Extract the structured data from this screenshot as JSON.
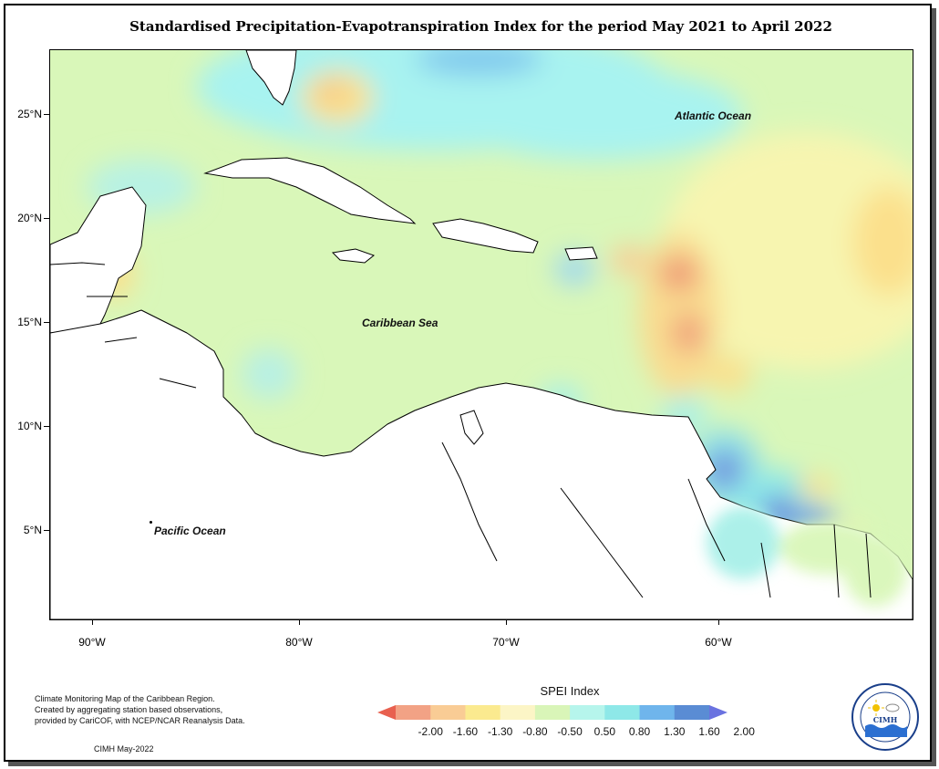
{
  "title": "Standardised Precipitation-Evapotranspiration Index for the period May 2021 to April 2022",
  "axes": {
    "y_labels": [
      "25°N",
      "20°N",
      "15°N",
      "10°N",
      "5°N"
    ],
    "x_labels": [
      "90°W",
      "80°W",
      "70°W",
      "60°W"
    ]
  },
  "map_labels": {
    "atlantic": "Atlantic Ocean",
    "caribbean": "Caribbean Sea",
    "pacific": "Pacific Ocean"
  },
  "notes": {
    "line1": "Climate Monitoring Map of the Caribbean Region.",
    "line2": "Created by aggregating station based observations,",
    "line3": "provided by CariCOF, with NCEP/NCAR Reanalysis Data.",
    "credit": "CIMH May-2022"
  },
  "legend": {
    "title": "SPEI Index",
    "labels": [
      "-2.00",
      "-1.60",
      "-1.30",
      "-0.80",
      "-0.50",
      "0.50",
      "0.80",
      "1.30",
      "1.60",
      "2.00"
    ],
    "colors": [
      "#e8604f",
      "#f2a285",
      "#f9cc95",
      "#fbea8f",
      "#fcf5c6",
      "#d9f5b8",
      "#b6f5ec",
      "#8ee8e8",
      "#6fb5ec",
      "#5a8cd4",
      "#6a72e0"
    ]
  },
  "logo": {
    "text": "CIMH",
    "ring_text": "Caribbean Institute for Meteorology and Hydrology"
  }
}
